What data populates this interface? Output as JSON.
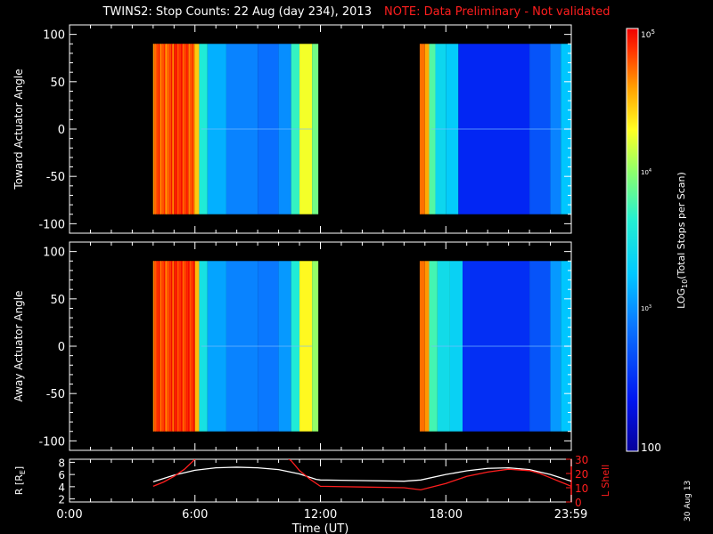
{
  "title": "TWINS2: Stop Counts: 22 Aug (day 234), 2013",
  "note": "NOTE: Data Preliminary - Not validated",
  "date_stamp": "30 Aug 13",
  "colors": {
    "background": "#000000",
    "axes": "#ffffff",
    "note": "#ff1e1e",
    "l_shell": "#ff1e1e",
    "radius": "#ffffff"
  },
  "chart_data": [
    {
      "type": "heatmap",
      "panel": "top",
      "ylabel": "Toward Actuator Angle",
      "xlim": [
        0,
        24
      ],
      "ylim": [
        -110,
        110
      ],
      "yticks": [
        100,
        50,
        0,
        -50,
        -100
      ],
      "data_y_range": [
        -90,
        90
      ],
      "colorscale": "log",
      "columns": [
        {
          "t0": 4.0,
          "t1": 5.0,
          "v": 4.75,
          "striped": true
        },
        {
          "t0": 5.0,
          "t1": 5.7,
          "v": 4.85,
          "striped": true
        },
        {
          "t0": 5.7,
          "t1": 6.0,
          "v": 4.75,
          "striped": true
        },
        {
          "t0": 6.0,
          "t1": 6.2,
          "v": 4.45
        },
        {
          "t0": 6.2,
          "t1": 6.6,
          "v": 3.6
        },
        {
          "t0": 6.6,
          "t1": 7.5,
          "v": 3.15
        },
        {
          "t0": 7.5,
          "t1": 9.0,
          "v": 2.95
        },
        {
          "t0": 9.0,
          "t1": 10.0,
          "v": 2.85
        },
        {
          "t0": 10.0,
          "t1": 10.6,
          "v": 3.0
        },
        {
          "t0": 10.6,
          "t1": 11.0,
          "v": 3.7
        },
        {
          "t0": 11.0,
          "t1": 11.6,
          "v": 4.25
        },
        {
          "t0": 11.6,
          "t1": 11.9,
          "v": 3.9
        },
        {
          "t0": 16.75,
          "t1": 17.0,
          "v": 4.7
        },
        {
          "t0": 17.0,
          "t1": 17.2,
          "v": 4.55
        },
        {
          "t0": 17.2,
          "t1": 17.5,
          "v": 3.8
        },
        {
          "t0": 17.5,
          "t1": 18.0,
          "v": 3.4
        },
        {
          "t0": 18.0,
          "t1": 18.6,
          "v": 3.3
        },
        {
          "t0": 18.6,
          "t1": 22.0,
          "v": 2.45
        },
        {
          "t0": 22.0,
          "t1": 23.0,
          "v": 2.7
        },
        {
          "t0": 23.0,
          "t1": 23.5,
          "v": 2.95
        },
        {
          "t0": 23.5,
          "t1": 23.98,
          "v": 3.25
        }
      ]
    },
    {
      "type": "heatmap",
      "panel": "middle",
      "ylabel": "Away Actuator Angle",
      "xlim": [
        0,
        24
      ],
      "ylim": [
        -110,
        110
      ],
      "yticks": [
        100,
        50,
        0,
        -50,
        -100
      ],
      "data_y_range": [
        -90,
        90
      ],
      "colorscale": "log",
      "columns": [
        {
          "t0": 4.0,
          "t1": 5.0,
          "v": 4.8,
          "striped": true
        },
        {
          "t0": 5.0,
          "t1": 6.0,
          "v": 4.85,
          "striped": true
        },
        {
          "t0": 6.0,
          "t1": 6.2,
          "v": 4.5
        },
        {
          "t0": 6.2,
          "t1": 6.6,
          "v": 3.5
        },
        {
          "t0": 6.6,
          "t1": 7.5,
          "v": 3.1
        },
        {
          "t0": 7.5,
          "t1": 9.0,
          "v": 2.95
        },
        {
          "t0": 9.0,
          "t1": 10.0,
          "v": 2.9
        },
        {
          "t0": 10.0,
          "t1": 10.6,
          "v": 3.05
        },
        {
          "t0": 10.6,
          "t1": 11.0,
          "v": 3.6
        },
        {
          "t0": 11.0,
          "t1": 11.6,
          "v": 4.3
        },
        {
          "t0": 11.6,
          "t1": 11.9,
          "v": 4.0
        },
        {
          "t0": 16.75,
          "t1": 17.0,
          "v": 4.7
        },
        {
          "t0": 17.0,
          "t1": 17.2,
          "v": 4.6
        },
        {
          "t0": 17.2,
          "t1": 17.6,
          "v": 3.75
        },
        {
          "t0": 17.6,
          "t1": 18.2,
          "v": 3.45
        },
        {
          "t0": 18.2,
          "t1": 18.8,
          "v": 3.35
        },
        {
          "t0": 18.8,
          "t1": 22.0,
          "v": 2.5
        },
        {
          "t0": 22.0,
          "t1": 23.0,
          "v": 2.7
        },
        {
          "t0": 23.0,
          "t1": 23.5,
          "v": 3.05
        },
        {
          "t0": 23.5,
          "t1": 23.98,
          "v": 3.25
        }
      ]
    },
    {
      "type": "line",
      "panel": "bottom",
      "ylabel": "R [R",
      "ylabel_sub": "E",
      "ylabel_close": "]",
      "ylim": [
        1.5,
        8.5
      ],
      "yticks": [
        2,
        4,
        6,
        8
      ],
      "y2label": "L Shell",
      "y2lim": [
        0,
        30
      ],
      "y2ticks": [
        0,
        10,
        20,
        30
      ],
      "xlabel": "Time (UT)",
      "xlim": [
        0,
        24
      ],
      "xticks": [
        0,
        6,
        12,
        18,
        23.98
      ],
      "xtick_labels": [
        "0:00",
        "6:00",
        "12:00",
        "18:00",
        "23:59"
      ],
      "series": [
        {
          "axis": "left",
          "x": [
            4.0,
            5.0,
            6.0,
            7.0,
            8.0,
            9.0,
            10.0,
            11.0,
            11.8,
            12.0,
            14.0,
            16.0,
            16.8,
            18.0,
            19.0,
            20.0,
            21.0,
            22.0,
            23.0,
            24.0
          ],
          "values": [
            4.8,
            5.9,
            6.7,
            7.1,
            7.2,
            7.1,
            6.8,
            6.1,
            5.2,
            5.1,
            5.0,
            4.9,
            5.1,
            6.0,
            6.6,
            7.0,
            7.1,
            6.8,
            6.0,
            4.9
          ]
        },
        {
          "axis": "right",
          "segments": [
            {
              "x": [
                4.0,
                4.5,
                5.0,
                5.5,
                6.0,
                6.2
              ],
              "values": [
                11,
                14,
                18,
                23,
                30,
                34
              ]
            },
            {
              "x": [
                10.3,
                10.6,
                11.0,
                11.5,
                12.0,
                14.0,
                16.0,
                16.8,
                18.0,
                19.0,
                20.0,
                21.0,
                22.0,
                22.5,
                23.0,
                23.5,
                24.0
              ],
              "values": [
                32,
                29,
                22,
                16,
                11,
                10.5,
                10,
                8.5,
                13,
                18,
                21,
                23,
                22,
                20,
                17,
                14,
                11
              ]
            }
          ]
        }
      ]
    }
  ],
  "colorbar": {
    "label_prefix": "LOG",
    "label_sub": "10",
    "label_suffix": "(Total Stops per Scan)",
    "scale": "log",
    "range": [
      2,
      5
    ],
    "top_prefix": "10",
    "top_exp": "5",
    "mid_prefix": "10",
    "mid_exp": "4",
    "low_prefix": "10",
    "low_exp": "3",
    "bottom_label": "100"
  }
}
